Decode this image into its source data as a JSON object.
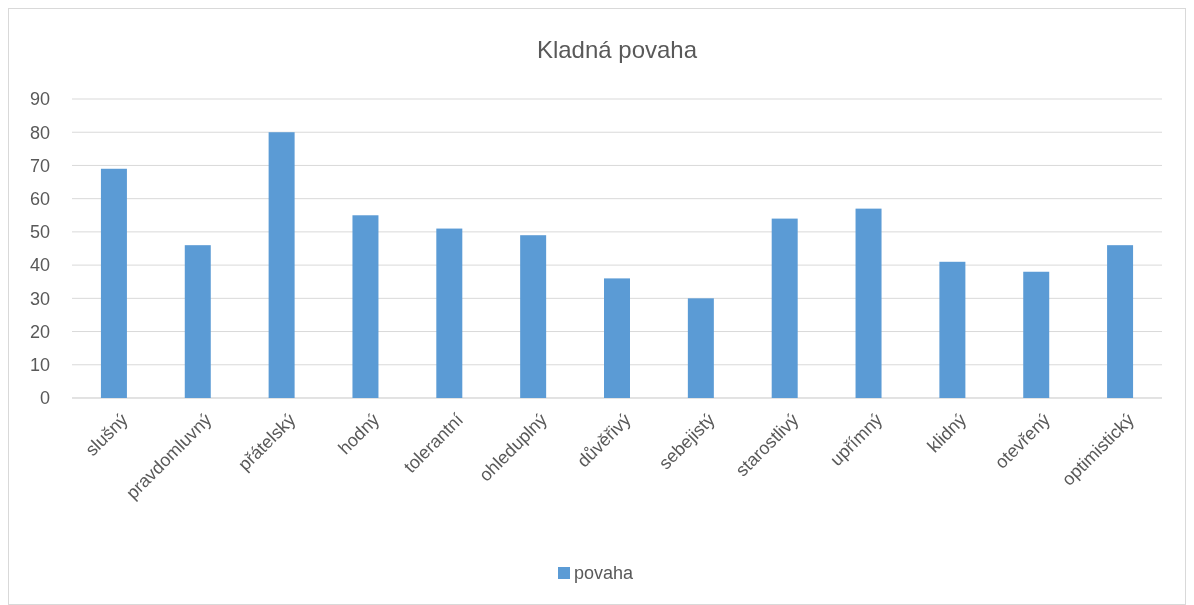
{
  "chart_data": {
    "type": "bar",
    "title": "Kladná povaha",
    "categories": [
      "slušný",
      "pravdomluvný",
      "přátelský",
      "hodný",
      "tolerantní",
      "ohleduplný",
      "důvěřivý",
      "sebejistý",
      "starostlivý",
      "upřímný",
      "klidný",
      "otevřený",
      "optimistický"
    ],
    "series": [
      {
        "name": "povaha",
        "color": "#5b9bd5",
        "values": [
          69,
          46,
          80,
          55,
          51,
          49,
          36,
          30,
          54,
          57,
          41,
          38,
          46
        ]
      }
    ],
    "ylim": [
      0,
      90
    ],
    "yticks": [
      0,
      10,
      20,
      30,
      40,
      50,
      60,
      70,
      80,
      90
    ],
    "grid": "y",
    "legend": "bottom"
  }
}
